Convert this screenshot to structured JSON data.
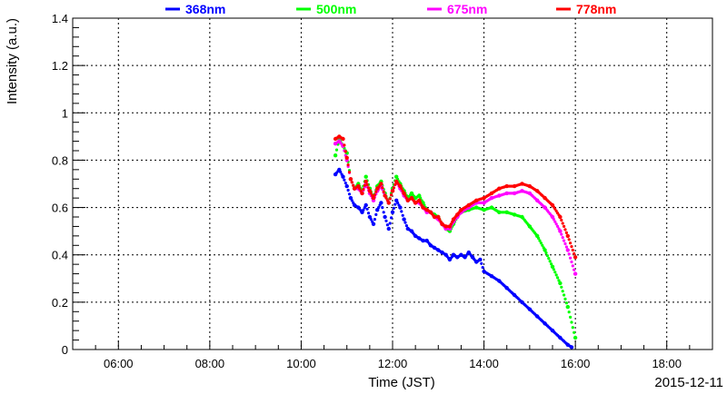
{
  "chart_data": {
    "type": "scatter",
    "title": "",
    "xlabel": "Time (JST)",
    "ylabel": "Intensity (a.u.)",
    "date_label": "2015-12-11",
    "xlim": [
      "05:00",
      "19:00"
    ],
    "ylim": [
      0,
      1.4
    ],
    "grid": true,
    "legend_position": "top",
    "x_ticks": [
      "06:00",
      "08:00",
      "10:00",
      "12:00",
      "14:00",
      "16:00",
      "18:00"
    ],
    "y_ticks": [
      "0",
      "0.2",
      "0.4",
      "0.6",
      "0.8",
      "1",
      "1.2",
      "1.4"
    ],
    "series": [
      {
        "name": "368nm",
        "color": "#0000ff",
        "points": [
          [
            "10:45",
            0.74
          ],
          [
            "10:50",
            0.76
          ],
          [
            "10:55",
            0.73
          ],
          [
            "11:00",
            0.69
          ],
          [
            "11:05",
            0.64
          ],
          [
            "11:10",
            0.61
          ],
          [
            "11:15",
            0.6
          ],
          [
            "11:20",
            0.58
          ],
          [
            "11:25",
            0.61
          ],
          [
            "11:30",
            0.56
          ],
          [
            "11:35",
            0.53
          ],
          [
            "11:40",
            0.59
          ],
          [
            "11:45",
            0.62
          ],
          [
            "11:50",
            0.56
          ],
          [
            "11:55",
            0.51
          ],
          [
            "12:00",
            0.58
          ],
          [
            "12:05",
            0.63
          ],
          [
            "12:10",
            0.6
          ],
          [
            "12:15",
            0.55
          ],
          [
            "12:20",
            0.51
          ],
          [
            "12:25",
            0.5
          ],
          [
            "12:30",
            0.48
          ],
          [
            "12:35",
            0.47
          ],
          [
            "12:40",
            0.46
          ],
          [
            "12:45",
            0.46
          ],
          [
            "12:50",
            0.44
          ],
          [
            "12:55",
            0.43
          ],
          [
            "13:00",
            0.42
          ],
          [
            "13:05",
            0.41
          ],
          [
            "13:10",
            0.4
          ],
          [
            "13:15",
            0.38
          ],
          [
            "13:20",
            0.4
          ],
          [
            "13:25",
            0.39
          ],
          [
            "13:30",
            0.4
          ],
          [
            "13:35",
            0.39
          ],
          [
            "13:40",
            0.41
          ],
          [
            "13:45",
            0.39
          ],
          [
            "13:50",
            0.37
          ],
          [
            "13:55",
            0.38
          ],
          [
            "14:00",
            0.33
          ],
          [
            "14:10",
            0.31
          ],
          [
            "14:20",
            0.29
          ],
          [
            "14:30",
            0.26
          ],
          [
            "14:40",
            0.23
          ],
          [
            "14:50",
            0.2
          ],
          [
            "15:00",
            0.17
          ],
          [
            "15:10",
            0.14
          ],
          [
            "15:20",
            0.11
          ],
          [
            "15:30",
            0.08
          ],
          [
            "15:40",
            0.05
          ],
          [
            "15:50",
            0.02
          ],
          [
            "15:55",
            0.01
          ]
        ]
      },
      {
        "name": "500nm",
        "color": "#00ff00",
        "points": [
          [
            "10:45",
            0.82
          ],
          [
            "10:50",
            0.89
          ],
          [
            "10:55",
            0.86
          ],
          [
            "11:00",
            0.83
          ],
          [
            "11:05",
            0.72
          ],
          [
            "11:10",
            0.68
          ],
          [
            "11:15",
            0.7
          ],
          [
            "11:20",
            0.67
          ],
          [
            "11:25",
            0.73
          ],
          [
            "11:30",
            0.68
          ],
          [
            "11:35",
            0.64
          ],
          [
            "11:40",
            0.69
          ],
          [
            "11:45",
            0.71
          ],
          [
            "11:50",
            0.66
          ],
          [
            "11:55",
            0.62
          ],
          [
            "12:00",
            0.68
          ],
          [
            "12:05",
            0.73
          ],
          [
            "12:10",
            0.7
          ],
          [
            "12:15",
            0.67
          ],
          [
            "12:20",
            0.64
          ],
          [
            "12:25",
            0.66
          ],
          [
            "12:30",
            0.64
          ],
          [
            "12:35",
            0.65
          ],
          [
            "12:40",
            0.62
          ],
          [
            "12:45",
            0.59
          ],
          [
            "12:50",
            0.58
          ],
          [
            "12:55",
            0.57
          ],
          [
            "13:00",
            0.56
          ],
          [
            "13:05",
            0.53
          ],
          [
            "13:10",
            0.51
          ],
          [
            "13:15",
            0.5
          ],
          [
            "13:20",
            0.53
          ],
          [
            "13:25",
            0.56
          ],
          [
            "13:30",
            0.58
          ],
          [
            "13:40",
            0.59
          ],
          [
            "13:50",
            0.6
          ],
          [
            "14:00",
            0.59
          ],
          [
            "14:10",
            0.6
          ],
          [
            "14:20",
            0.58
          ],
          [
            "14:30",
            0.58
          ],
          [
            "14:40",
            0.57
          ],
          [
            "14:50",
            0.56
          ],
          [
            "15:00",
            0.52
          ],
          [
            "15:10",
            0.48
          ],
          [
            "15:20",
            0.42
          ],
          [
            "15:30",
            0.35
          ],
          [
            "15:40",
            0.28
          ],
          [
            "15:50",
            0.18
          ],
          [
            "16:00",
            0.05
          ]
        ]
      },
      {
        "name": "675nm",
        "color": "#ff00ff",
        "points": [
          [
            "10:45",
            0.87
          ],
          [
            "10:50",
            0.88
          ],
          [
            "10:55",
            0.86
          ],
          [
            "11:00",
            0.8
          ],
          [
            "11:05",
            0.72
          ],
          [
            "11:10",
            0.68
          ],
          [
            "11:15",
            0.68
          ],
          [
            "11:20",
            0.66
          ],
          [
            "11:25",
            0.7
          ],
          [
            "11:30",
            0.66
          ],
          [
            "11:35",
            0.63
          ],
          [
            "11:40",
            0.67
          ],
          [
            "11:45",
            0.69
          ],
          [
            "11:50",
            0.65
          ],
          [
            "11:55",
            0.62
          ],
          [
            "12:00",
            0.67
          ],
          [
            "12:05",
            0.71
          ],
          [
            "12:10",
            0.68
          ],
          [
            "12:15",
            0.65
          ],
          [
            "12:20",
            0.63
          ],
          [
            "12:25",
            0.64
          ],
          [
            "12:30",
            0.62
          ],
          [
            "12:35",
            0.62
          ],
          [
            "12:40",
            0.6
          ],
          [
            "12:45",
            0.58
          ],
          [
            "12:50",
            0.58
          ],
          [
            "12:55",
            0.56
          ],
          [
            "13:00",
            0.55
          ],
          [
            "13:05",
            0.53
          ],
          [
            "13:10",
            0.51
          ],
          [
            "13:15",
            0.51
          ],
          [
            "13:20",
            0.54
          ],
          [
            "13:25",
            0.56
          ],
          [
            "13:30",
            0.58
          ],
          [
            "13:40",
            0.6
          ],
          [
            "13:50",
            0.62
          ],
          [
            "14:00",
            0.62
          ],
          [
            "14:10",
            0.64
          ],
          [
            "14:20",
            0.65
          ],
          [
            "14:30",
            0.66
          ],
          [
            "14:40",
            0.66
          ],
          [
            "14:50",
            0.67
          ],
          [
            "15:00",
            0.66
          ],
          [
            "15:10",
            0.63
          ],
          [
            "15:20",
            0.6
          ],
          [
            "15:30",
            0.56
          ],
          [
            "15:40",
            0.5
          ],
          [
            "15:50",
            0.42
          ],
          [
            "16:00",
            0.32
          ]
        ]
      },
      {
        "name": "778nm",
        "color": "#ff0000",
        "points": [
          [
            "10:45",
            0.89
          ],
          [
            "10:50",
            0.9
          ],
          [
            "10:55",
            0.89
          ],
          [
            "11:00",
            0.81
          ],
          [
            "11:05",
            0.72
          ],
          [
            "11:10",
            0.68
          ],
          [
            "11:15",
            0.69
          ],
          [
            "11:20",
            0.66
          ],
          [
            "11:25",
            0.71
          ],
          [
            "11:30",
            0.67
          ],
          [
            "11:35",
            0.64
          ],
          [
            "11:40",
            0.68
          ],
          [
            "11:45",
            0.7
          ],
          [
            "11:50",
            0.65
          ],
          [
            "11:55",
            0.62
          ],
          [
            "12:00",
            0.67
          ],
          [
            "12:05",
            0.71
          ],
          [
            "12:10",
            0.69
          ],
          [
            "12:15",
            0.66
          ],
          [
            "12:20",
            0.63
          ],
          [
            "12:25",
            0.64
          ],
          [
            "12:30",
            0.62
          ],
          [
            "12:35",
            0.63
          ],
          [
            "12:40",
            0.6
          ],
          [
            "12:45",
            0.59
          ],
          [
            "12:50",
            0.58
          ],
          [
            "12:55",
            0.56
          ],
          [
            "13:00",
            0.56
          ],
          [
            "13:05",
            0.53
          ],
          [
            "13:10",
            0.52
          ],
          [
            "13:15",
            0.52
          ],
          [
            "13:20",
            0.55
          ],
          [
            "13:25",
            0.57
          ],
          [
            "13:30",
            0.59
          ],
          [
            "13:40",
            0.61
          ],
          [
            "13:50",
            0.63
          ],
          [
            "14:00",
            0.64
          ],
          [
            "14:10",
            0.66
          ],
          [
            "14:20",
            0.68
          ],
          [
            "14:30",
            0.69
          ],
          [
            "14:40",
            0.69
          ],
          [
            "14:50",
            0.7
          ],
          [
            "15:00",
            0.69
          ],
          [
            "15:10",
            0.67
          ],
          [
            "15:20",
            0.64
          ],
          [
            "15:30",
            0.61
          ],
          [
            "15:40",
            0.56
          ],
          [
            "15:50",
            0.48
          ],
          [
            "16:00",
            0.39
          ]
        ]
      }
    ]
  }
}
